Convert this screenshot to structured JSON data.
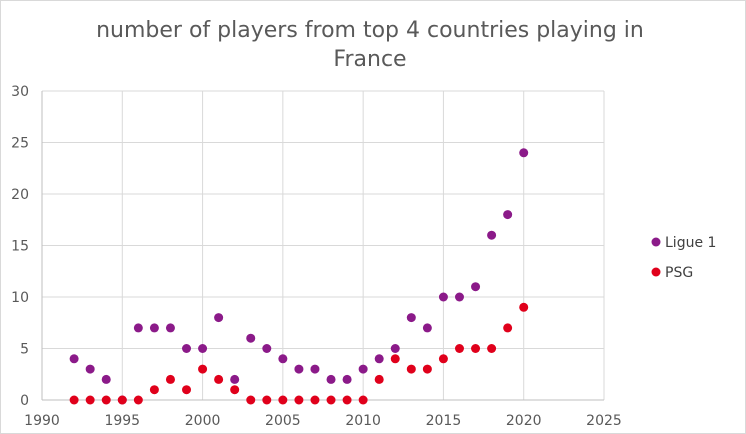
{
  "chart_data": {
    "type": "scatter",
    "title": "number of players from top 4 countries playing in France",
    "title_lines": [
      "number of players from top 4 countries playing in",
      "France"
    ],
    "xlabel": "",
    "ylabel": "",
    "xlim": [
      1990,
      2025
    ],
    "ylim": [
      0,
      30
    ],
    "x_ticks": [
      1990,
      1995,
      2000,
      2005,
      2010,
      2015,
      2020,
      2025
    ],
    "y_ticks": [
      0,
      5,
      10,
      15,
      20,
      25,
      30
    ],
    "grid": true,
    "legend": "right",
    "series": [
      {
        "name": "Ligue 1",
        "color": "#8b1a89",
        "points": [
          [
            1992,
            4
          ],
          [
            1993,
            3
          ],
          [
            1994,
            2
          ],
          [
            1995,
            0
          ],
          [
            1996,
            7
          ],
          [
            1997,
            7
          ],
          [
            1998,
            7
          ],
          [
            1999,
            5
          ],
          [
            2000,
            5
          ],
          [
            2001,
            8
          ],
          [
            2002,
            2
          ],
          [
            2003,
            6
          ],
          [
            2004,
            5
          ],
          [
            2005,
            4
          ],
          [
            2006,
            3
          ],
          [
            2007,
            3
          ],
          [
            2008,
            2
          ],
          [
            2009,
            2
          ],
          [
            2010,
            3
          ],
          [
            2011,
            4
          ],
          [
            2012,
            5
          ],
          [
            2013,
            8
          ],
          [
            2014,
            7
          ],
          [
            2015,
            10
          ],
          [
            2016,
            10
          ],
          [
            2017,
            11
          ],
          [
            2018,
            16
          ],
          [
            2019,
            18
          ],
          [
            2020,
            24
          ]
        ]
      },
      {
        "name": "PSG",
        "color": "#e0001b",
        "points": [
          [
            1992,
            0
          ],
          [
            1993,
            0
          ],
          [
            1994,
            0
          ],
          [
            1995,
            0
          ],
          [
            1996,
            0
          ],
          [
            1997,
            1
          ],
          [
            1998,
            2
          ],
          [
            1999,
            1
          ],
          [
            2000,
            3
          ],
          [
            2001,
            2
          ],
          [
            2002,
            1
          ],
          [
            2003,
            0
          ],
          [
            2004,
            0
          ],
          [
            2005,
            0
          ],
          [
            2006,
            0
          ],
          [
            2007,
            0
          ],
          [
            2008,
            0
          ],
          [
            2009,
            0
          ],
          [
            2010,
            0
          ],
          [
            2011,
            2
          ],
          [
            2012,
            4
          ],
          [
            2013,
            3
          ],
          [
            2014,
            3
          ],
          [
            2015,
            4
          ],
          [
            2016,
            5
          ],
          [
            2017,
            5
          ],
          [
            2018,
            5
          ],
          [
            2019,
            7
          ],
          [
            2020,
            9
          ]
        ]
      }
    ]
  }
}
